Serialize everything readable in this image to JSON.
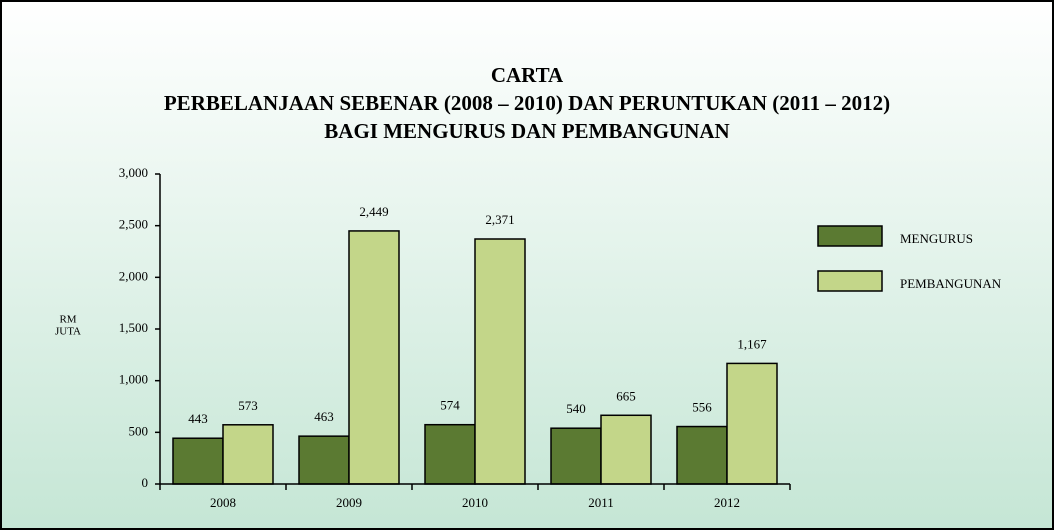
{
  "chart_data": {
    "type": "bar",
    "title": [
      "CARTA",
      "PERBELANJAAN SEBENAR (2008 – 2010) DAN PERUNTUKAN (2011 – 2012)",
      "BAGI MENGURUS DAN PEMBANGUNAN"
    ],
    "ylabel": [
      "RM",
      "JUTA"
    ],
    "categories": [
      "2008",
      "2009",
      "2010",
      "2011",
      "2012"
    ],
    "series": [
      {
        "name": "MENGURUS",
        "color": "#5b7a32",
        "values": [
          443,
          463,
          574,
          540,
          556
        ],
        "value_labels": [
          "443",
          "463",
          "574",
          "540",
          "556"
        ]
      },
      {
        "name": "PEMBANGUNAN",
        "color": "#c3d689",
        "values": [
          573,
          2449,
          2371,
          665,
          1167
        ],
        "value_labels": [
          "573",
          "2,449",
          "2,371",
          "665",
          "1,167"
        ]
      }
    ],
    "ylim": [
      0,
      3000
    ],
    "yticks": [
      0,
      500,
      {
        "value": 1000,
        "label": "1,000"
      },
      {
        "value": 1500,
        "label": "1,500"
      },
      {
        "value": 2000,
        "label": "2,000"
      },
      {
        "value": 2500,
        "label": "2,500"
      },
      {
        "value": 3000,
        "label": "3,000"
      }
    ],
    "legend": "right"
  }
}
